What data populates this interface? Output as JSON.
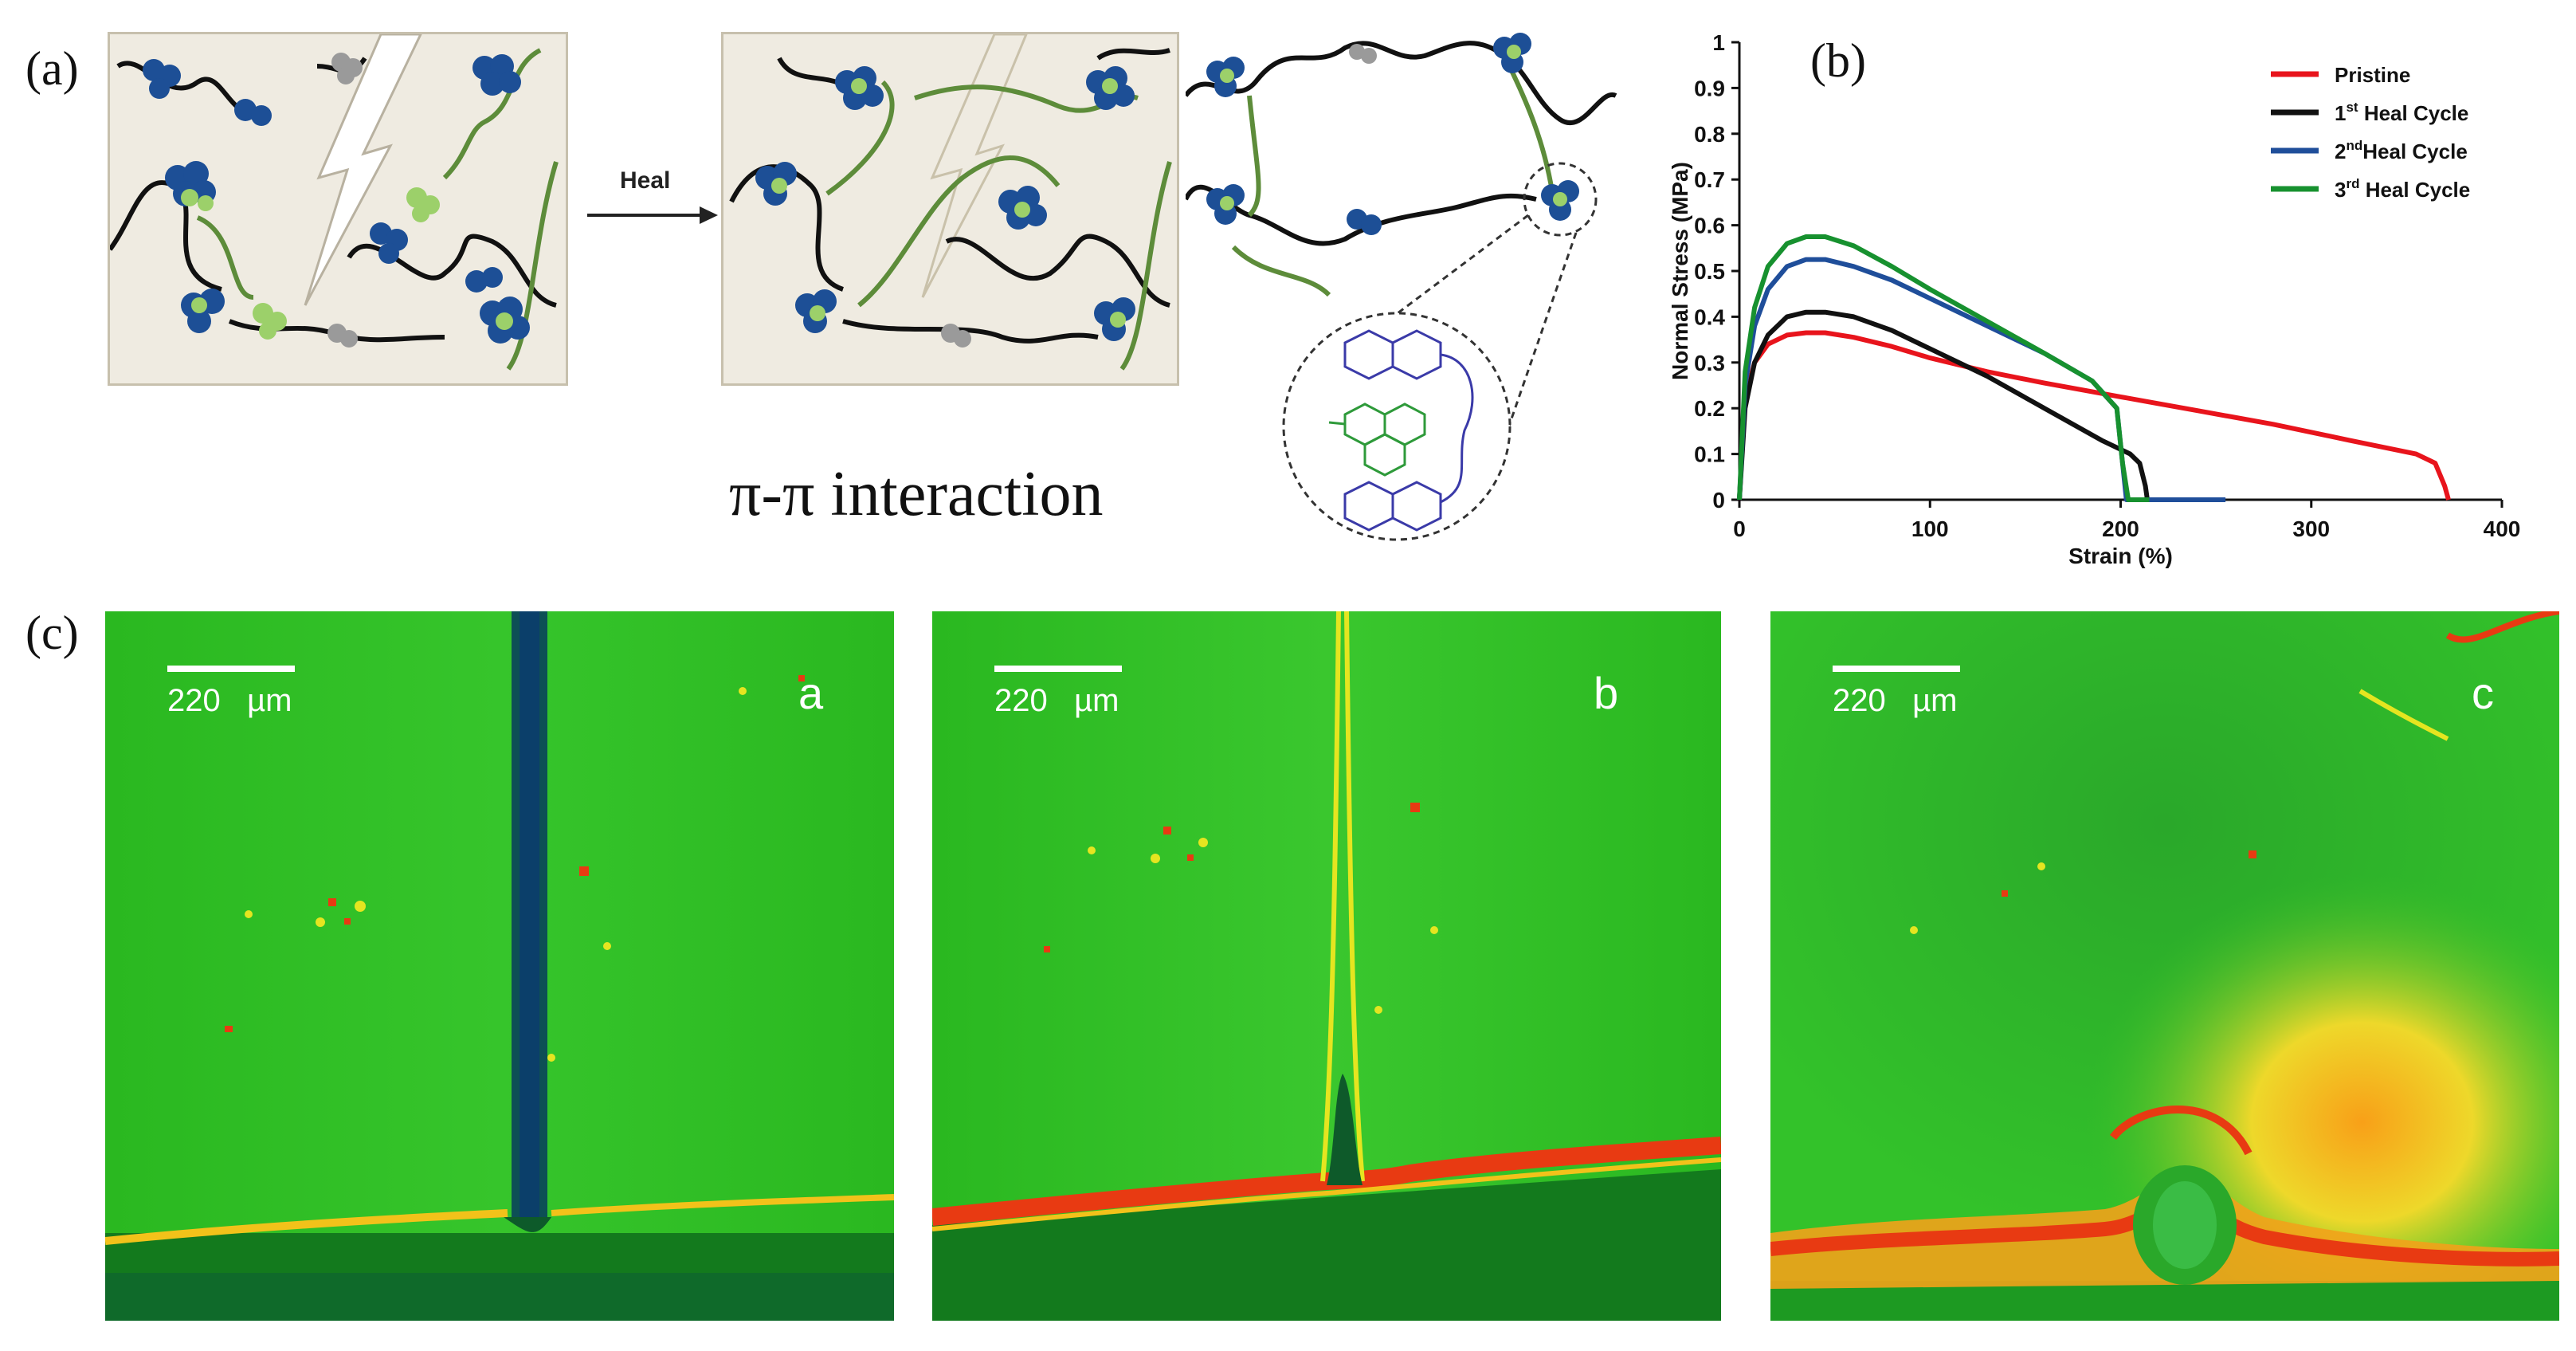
{
  "panel_labels": {
    "a": "(a)",
    "b": "(b)",
    "c": "(c)"
  },
  "scheme": {
    "arrow_label": "Heal",
    "interaction_label": "π-π interaction"
  },
  "chart_data": {
    "type": "line",
    "title": "",
    "xlabel": "Strain (%)",
    "ylabel": "Normal Stress (MPa)",
    "xlim": [
      0,
      400
    ],
    "ylim": [
      0,
      1
    ],
    "xticks": [
      0,
      100,
      200,
      300,
      400
    ],
    "yticks": [
      0,
      0.1,
      0.2,
      0.3,
      0.4,
      0.5,
      0.6,
      0.7,
      0.8,
      0.9,
      1
    ],
    "grid": false,
    "legend_position": "top-right",
    "series": [
      {
        "name": "Pristine",
        "color": "#e8141c",
        "x": [
          0,
          3,
          8,
          15,
          25,
          35,
          45,
          60,
          80,
          100,
          130,
          160,
          200,
          240,
          280,
          320,
          355,
          365,
          370,
          372
        ],
        "y": [
          0,
          0.22,
          0.3,
          0.34,
          0.36,
          0.365,
          0.365,
          0.355,
          0.335,
          0.31,
          0.28,
          0.255,
          0.225,
          0.195,
          0.165,
          0.13,
          0.1,
          0.08,
          0.03,
          0
        ]
      },
      {
        "name": "1st Heal Cycle",
        "label_base": "1",
        "label_sup": "st",
        "label_rest": " Heal Cycle",
        "color": "#111111",
        "x": [
          0,
          3,
          8,
          15,
          25,
          35,
          45,
          60,
          80,
          100,
          130,
          160,
          190,
          205,
          210,
          213,
          214
        ],
        "y": [
          0,
          0.2,
          0.3,
          0.36,
          0.4,
          0.41,
          0.41,
          0.4,
          0.37,
          0.33,
          0.27,
          0.2,
          0.13,
          0.1,
          0.08,
          0.03,
          0
        ]
      },
      {
        "name": "2ndHeal Cycle",
        "label_base": "2",
        "label_sup": "nd",
        "label_rest": "Heal Cycle",
        "color": "#1f4e9a",
        "x": [
          0,
          3,
          8,
          15,
          25,
          35,
          45,
          60,
          80,
          100,
          130,
          160,
          185,
          198,
          201,
          203,
          205,
          230,
          255
        ],
        "y": [
          0,
          0.25,
          0.38,
          0.46,
          0.51,
          0.525,
          0.525,
          0.51,
          0.48,
          0.44,
          0.38,
          0.32,
          0.26,
          0.2,
          0.08,
          0,
          0,
          0,
          0
        ]
      },
      {
        "name": "3rd Heal Cycle",
        "label_base": "3",
        "label_sup": "rd",
        "label_rest": " Heal Cycle",
        "color": "#17912f",
        "x": [
          0,
          3,
          8,
          15,
          25,
          35,
          45,
          60,
          80,
          100,
          130,
          160,
          185,
          198,
          201,
          204,
          207,
          215
        ],
        "y": [
          0,
          0.28,
          0.42,
          0.51,
          0.56,
          0.575,
          0.575,
          0.555,
          0.51,
          0.46,
          0.39,
          0.32,
          0.26,
          0.2,
          0.08,
          0,
          0,
          0
        ]
      }
    ]
  },
  "micrographs": [
    {
      "letter": "a",
      "scale_value": "220",
      "scale_unit": "µm"
    },
    {
      "letter": "b",
      "scale_value": "220",
      "scale_unit": "µm"
    },
    {
      "letter": "c",
      "scale_value": "220",
      "scale_unit": "µm"
    }
  ],
  "colors": {
    "polymer_blue": "#1d4f96",
    "pyrene_green": "#9cd06a",
    "chain_green": "#5d8c3a",
    "chain_black": "#111111",
    "micro_green": "#22b31a",
    "micro_red": "#e83a12"
  }
}
